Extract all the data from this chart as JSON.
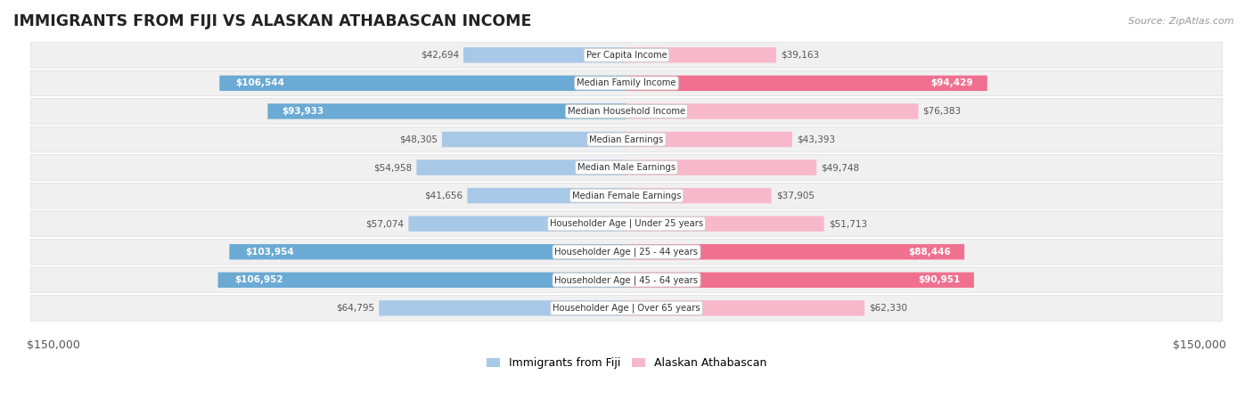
{
  "title": "IMMIGRANTS FROM FIJI VS ALASKAN ATHABASCAN INCOME",
  "source": "Source: ZipAtlas.com",
  "categories": [
    "Per Capita Income",
    "Median Family Income",
    "Median Household Income",
    "Median Earnings",
    "Median Male Earnings",
    "Median Female Earnings",
    "Householder Age | Under 25 years",
    "Householder Age | 25 - 44 years",
    "Householder Age | 45 - 64 years",
    "Householder Age | Over 65 years"
  ],
  "fiji_values": [
    42694,
    106544,
    93933,
    48305,
    54958,
    41656,
    57074,
    103954,
    106952,
    64795
  ],
  "alaska_values": [
    39163,
    94429,
    76383,
    43393,
    49748,
    37905,
    51713,
    88446,
    90951,
    62330
  ],
  "fiji_color_light": "#a8c8e8",
  "fiji_color_dark": "#6aaad4",
  "alaska_color_light": "#f8b8cc",
  "alaska_color_dark": "#f07090",
  "fiji_label": "Immigrants from Fiji",
  "alaska_label": "Alaskan Athabascan",
  "max_value": 150000,
  "color_threshold": 80000,
  "row_bg_color": "#f0f0f0",
  "label_box_color": "#ffffff",
  "background_color": "#ffffff",
  "title_color": "#222222",
  "source_color": "#999999"
}
